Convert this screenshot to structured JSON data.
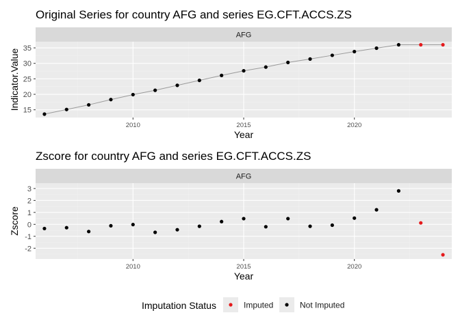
{
  "chart_data": [
    {
      "type": "scatter",
      "title": "Original Series for country AFG  and series EG.CFT.ACCS.ZS",
      "facet_label": "AFG",
      "xlabel": "Year",
      "ylabel": "Indicator.Value",
      "xlim": [
        2005.6,
        2024.4
      ],
      "ylim": [
        12.5,
        37.0
      ],
      "x_ticks": [
        2010,
        2015,
        2020
      ],
      "y_ticks": [
        15,
        20,
        25,
        30,
        35
      ],
      "grid": true,
      "connecting_line": true,
      "line_color": "#9a9a9a",
      "points": [
        {
          "x": 2006,
          "y": 13.6,
          "status": "Not Imputed"
        },
        {
          "x": 2007,
          "y": 15.1,
          "status": "Not Imputed"
        },
        {
          "x": 2008,
          "y": 16.6,
          "status": "Not Imputed"
        },
        {
          "x": 2009,
          "y": 18.3,
          "status": "Not Imputed"
        },
        {
          "x": 2010,
          "y": 19.9,
          "status": "Not Imputed"
        },
        {
          "x": 2011,
          "y": 21.3,
          "status": "Not Imputed"
        },
        {
          "x": 2012,
          "y": 22.9,
          "status": "Not Imputed"
        },
        {
          "x": 2013,
          "y": 24.5,
          "status": "Not Imputed"
        },
        {
          "x": 2014,
          "y": 26.1,
          "status": "Not Imputed"
        },
        {
          "x": 2015,
          "y": 27.6,
          "status": "Not Imputed"
        },
        {
          "x": 2016,
          "y": 28.8,
          "status": "Not Imputed"
        },
        {
          "x": 2017,
          "y": 30.3,
          "status": "Not Imputed"
        },
        {
          "x": 2018,
          "y": 31.4,
          "status": "Not Imputed"
        },
        {
          "x": 2019,
          "y": 32.6,
          "status": "Not Imputed"
        },
        {
          "x": 2020,
          "y": 33.8,
          "status": "Not Imputed"
        },
        {
          "x": 2021,
          "y": 34.9,
          "status": "Not Imputed"
        },
        {
          "x": 2022,
          "y": 36.0,
          "status": "Not Imputed"
        },
        {
          "x": 2023,
          "y": 36.0,
          "status": "Imputed"
        },
        {
          "x": 2024,
          "y": 36.0,
          "status": "Imputed"
        }
      ]
    },
    {
      "type": "scatter",
      "title": "Zscore for country AFG  and series EG.CFT.ACCS.ZS",
      "facet_label": "AFG",
      "xlabel": "Year",
      "ylabel": "Zscore",
      "xlim": [
        2005.6,
        2024.4
      ],
      "ylim": [
        -2.9,
        3.45
      ],
      "x_ticks": [
        2010,
        2015,
        2020
      ],
      "y_ticks": [
        -2,
        -1,
        0,
        1,
        2,
        3
      ],
      "grid": true,
      "connecting_line": false,
      "points": [
        {
          "x": 2006,
          "y": -0.35,
          "status": "Not Imputed"
        },
        {
          "x": 2007,
          "y": -0.28,
          "status": "Not Imputed"
        },
        {
          "x": 2008,
          "y": -0.6,
          "status": "Not Imputed"
        },
        {
          "x": 2009,
          "y": -0.12,
          "status": "Not Imputed"
        },
        {
          "x": 2010,
          "y": -0.02,
          "status": "Not Imputed"
        },
        {
          "x": 2011,
          "y": -0.67,
          "status": "Not Imputed"
        },
        {
          "x": 2012,
          "y": -0.45,
          "status": "Not Imputed"
        },
        {
          "x": 2013,
          "y": -0.16,
          "status": "Not Imputed"
        },
        {
          "x": 2014,
          "y": 0.23,
          "status": "Not Imputed"
        },
        {
          "x": 2015,
          "y": 0.48,
          "status": "Not Imputed"
        },
        {
          "x": 2016,
          "y": -0.2,
          "status": "Not Imputed"
        },
        {
          "x": 2017,
          "y": 0.48,
          "status": "Not Imputed"
        },
        {
          "x": 2018,
          "y": -0.16,
          "status": "Not Imputed"
        },
        {
          "x": 2019,
          "y": -0.07,
          "status": "Not Imputed"
        },
        {
          "x": 2020,
          "y": 0.52,
          "status": "Not Imputed"
        },
        {
          "x": 2021,
          "y": 1.22,
          "status": "Not Imputed"
        },
        {
          "x": 2022,
          "y": 2.8,
          "status": "Not Imputed"
        },
        {
          "x": 2023,
          "y": 0.12,
          "status": "Imputed"
        },
        {
          "x": 2024,
          "y": -2.55,
          "status": "Imputed"
        }
      ]
    }
  ],
  "legend": {
    "title": "Imputation Status",
    "placement": "bottom",
    "items": [
      {
        "label": "Imputed",
        "status": "Imputed",
        "color": "#e41a1c"
      },
      {
        "label": "Not Imputed",
        "status": "Not Imputed",
        "color": "#000000"
      }
    ]
  },
  "colors": {
    "panel_background": "#ebebeb",
    "strip_background": "#d9d9d9",
    "grid_major": "#ffffff",
    "grid_minor": "#f2f2f2",
    "axis_text": "#4d4d4d",
    "text": "#000000"
  }
}
